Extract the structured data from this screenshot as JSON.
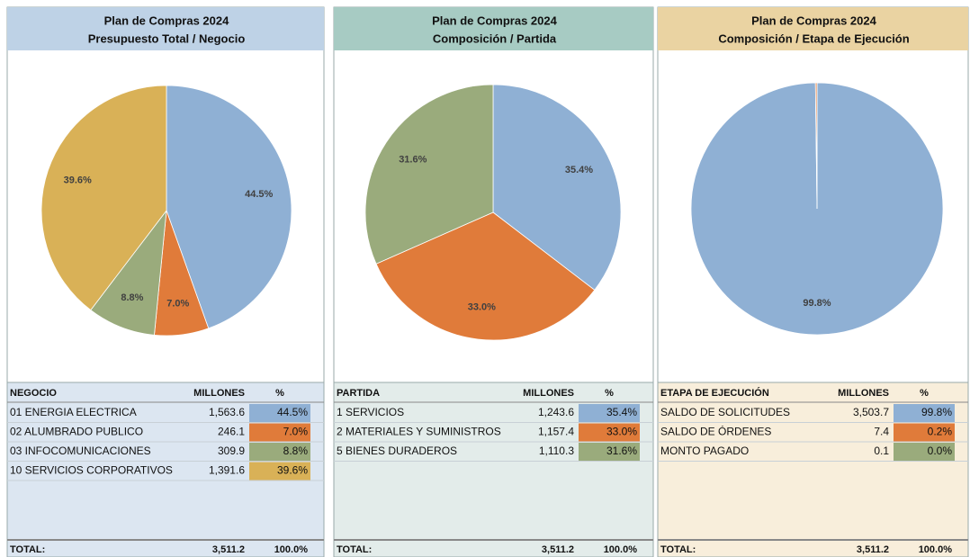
{
  "chart_data": [
    {
      "type": "pie",
      "title": "Plan de Compras 2024",
      "subtitle": "Presupuesto Total / Negocio",
      "header_color": "#bed2e6",
      "panel_color": "#dce6f1",
      "categories": [
        "01 ENERGIA ELECTRICA",
        "02 ALUMBRADO PUBLICO",
        "03 INFOCOMUNICACIONES",
        "10 SERVICIOS CORPORATIVOS"
      ],
      "values": [
        44.5,
        7.0,
        8.8,
        39.6
      ],
      "value_labels": [
        "44.5%",
        "7.0%",
        "8.8%",
        "39.6%"
      ],
      "colors": [
        "#8fb0d4",
        "#e07b3a",
        "#9aab7c",
        "#d9b157"
      ],
      "table_headers": [
        "NEGOCIO",
        "MILLONES",
        "%"
      ],
      "amounts": [
        "1,563.6",
        "246.1",
        "309.9",
        "1,391.6"
      ],
      "total": [
        "TOTAL:",
        "3,511.2",
        "100.0%"
      ]
    },
    {
      "type": "pie",
      "title": "Plan de Compras 2024",
      "subtitle": "Composición / Partida",
      "header_color": "#a7cbc3",
      "panel_color": "#e3ecea",
      "categories": [
        "1 SERVICIOS",
        "2 MATERIALES Y SUMINISTROS",
        "5 BIENES DURADEROS"
      ],
      "values": [
        35.4,
        33.0,
        31.6
      ],
      "value_labels": [
        "35.4%",
        "33.0%",
        "31.6%"
      ],
      "colors": [
        "#8fb0d4",
        "#e07b3a",
        "#9aab7c"
      ],
      "table_headers": [
        "PARTIDA",
        "MILLONES",
        "%"
      ],
      "amounts": [
        "1,243.6",
        "1,157.4",
        "1,110.3"
      ],
      "total": [
        "TOTAL:",
        "3,511.2",
        "100.0%"
      ]
    },
    {
      "type": "pie",
      "title": "Plan de Compras 2024",
      "subtitle": "Composición / Etapa de Ejecución",
      "header_color": "#ead3a2",
      "panel_color": "#f8eedb",
      "categories": [
        "SALDO DE SOLICITUDES",
        "SALDO DE ÓRDENES",
        "MONTO PAGADO"
      ],
      "values": [
        99.8,
        0.2,
        0.0
      ],
      "value_labels": [
        "99.8%",
        "0.2%",
        "0.0%"
      ],
      "colors": [
        "#8fb0d4",
        "#e07b3a",
        "#9aab7c"
      ],
      "table_headers": [
        "ETAPA DE EJECUCIÓN",
        "MILLONES",
        "%"
      ],
      "amounts": [
        "3,503.7",
        "7.4",
        "0.1"
      ],
      "total": [
        "TOTAL:",
        "3,511.2",
        "100.0%"
      ]
    }
  ]
}
